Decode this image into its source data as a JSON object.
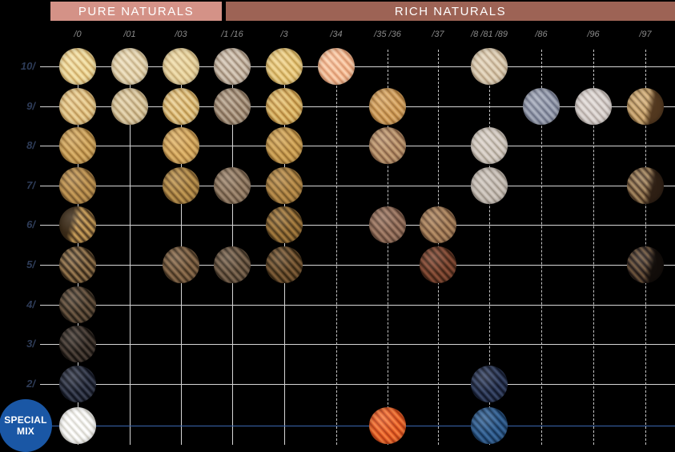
{
  "title_bars": {
    "pure": {
      "label": "PURE NATURALS",
      "color": "#d49287"
    },
    "rich": {
      "label": "RICH NATURALS",
      "color": "#9d6355"
    }
  },
  "grid": {
    "columns": [
      {
        "label": "/0",
        "line": "solid"
      },
      {
        "label": "/01",
        "line": "solid"
      },
      {
        "label": "/03",
        "line": "solid"
      },
      {
        "label": "/1 /16",
        "line": "solid"
      },
      {
        "label": "/3",
        "line": "solid"
      },
      {
        "label": "/34",
        "line": "dashed"
      },
      {
        "label": "/35 /36",
        "line": "dashed"
      },
      {
        "label": "/37",
        "line": "dashed"
      },
      {
        "label": "/8 /81 /89",
        "line": "dashed"
      },
      {
        "label": "/86",
        "line": "dashed"
      },
      {
        "label": "/96",
        "line": "dashed"
      },
      {
        "label": "/97",
        "line": "dashed"
      }
    ],
    "rows": [
      {
        "label": "10/"
      },
      {
        "label": "9/"
      },
      {
        "label": "8/"
      },
      {
        "label": "7/"
      },
      {
        "label": "6/"
      },
      {
        "label": "5/"
      },
      {
        "label": "4/"
      },
      {
        "label": "3/"
      },
      {
        "label": "2/"
      },
      {
        "label": ""
      }
    ],
    "swatches": [
      {
        "row": 0,
        "col": 0,
        "hi": "#f4e4ae",
        "base": "#e7cd8e",
        "lo": "#c6a35e"
      },
      {
        "row": 0,
        "col": 1,
        "hi": "#eee1c2",
        "base": "#ddcba4",
        "lo": "#bfa87e"
      },
      {
        "row": 0,
        "col": 2,
        "hi": "#f0dfae",
        "base": "#e2cb98",
        "lo": "#c2a870"
      },
      {
        "row": 0,
        "col": 3,
        "hi": "#d8cbbb",
        "base": "#bfae9c",
        "lo": "#927e6a"
      },
      {
        "row": 0,
        "col": 4,
        "hi": "#f0d794",
        "base": "#e2bf74",
        "lo": "#bd9a4a"
      },
      {
        "row": 0,
        "col": 5,
        "hi": "#fad2b2",
        "base": "#f1b38c",
        "lo": "#d4926a"
      },
      {
        "row": 0,
        "col": 8,
        "hi": "#e6d9c2",
        "base": "#d5c3a8",
        "lo": "#b29c7e"
      },
      {
        "row": 1,
        "col": 0,
        "hi": "#ecd49c",
        "base": "#dcba7c",
        "lo": "#b58f50"
      },
      {
        "row": 1,
        "col": 1,
        "hi": "#e6d6b2",
        "base": "#d2bd92",
        "lo": "#ad9468"
      },
      {
        "row": 1,
        "col": 2,
        "hi": "#ead29a",
        "base": "#d9b671",
        "lo": "#b08a46"
      },
      {
        "row": 1,
        "col": 3,
        "hi": "#bcab96",
        "base": "#9e8770",
        "lo": "#74604c"
      },
      {
        "row": 1,
        "col": 4,
        "hi": "#e6c67c",
        "base": "#d3a85a",
        "lo": "#a87c34"
      },
      {
        "row": 1,
        "col": 6,
        "hi": "#dfb175",
        "base": "#ca9751",
        "lo": "#a3713a"
      },
      {
        "row": 1,
        "col": 9,
        "hi": "#aab0bf",
        "base": "#8d93a5",
        "lo": "#666c80"
      },
      {
        "row": 1,
        "col": 10,
        "hi": "#e4dedb",
        "base": "#d2cac6",
        "lo": "#aba19c"
      },
      {
        "row": 1,
        "col": 11,
        "hi": "#d8b482",
        "base": "#bd9a62",
        "lo": "#7e5f3a",
        "side": "#52381f"
      },
      {
        "row": 2,
        "col": 0,
        "hi": "#dab26c",
        "base": "#c29751",
        "lo": "#976f33"
      },
      {
        "row": 2,
        "col": 2,
        "hi": "#e2b970",
        "base": "#cc9f58",
        "lo": "#9f7638"
      },
      {
        "row": 2,
        "col": 4,
        "hi": "#d8ad62",
        "base": "#c0954a",
        "lo": "#92692e"
      },
      {
        "row": 2,
        "col": 6,
        "hi": "#c8a47c",
        "base": "#ad8560",
        "lo": "#7e5a40"
      },
      {
        "row": 2,
        "col": 8,
        "hi": "#ded6ce",
        "base": "#ccc3ba",
        "lo": "#a29889"
      },
      {
        "row": 3,
        "col": 0,
        "hi": "#c79c58",
        "base": "#a67e45",
        "lo": "#75562c"
      },
      {
        "row": 3,
        "col": 2,
        "hi": "#c29a54",
        "base": "#a07a40",
        "lo": "#705226"
      },
      {
        "row": 3,
        "col": 3,
        "hi": "#a38c74",
        "base": "#87705a",
        "lo": "#5c4a38"
      },
      {
        "row": 3,
        "col": 4,
        "hi": "#bf9350",
        "base": "#a27a3e",
        "lo": "#6f5226"
      },
      {
        "row": 3,
        "col": 8,
        "hi": "#d4ccc4",
        "base": "#c0b7ae",
        "lo": "#978d82"
      },
      {
        "row": 3,
        "col": 11,
        "hi": "#a78a62",
        "base": "#7a5e40",
        "lo": "#42301f",
        "side": "#2e1f14"
      },
      {
        "row": 4,
        "col": 0,
        "hi": "#c89e5a",
        "base": "#8b6a3c",
        "lo": "#4c3820",
        "side": "#3b2b18",
        "sideAngle": 285
      },
      {
        "row": 4,
        "col": 4,
        "hi": "#a87e40",
        "base": "#7c5c2e",
        "lo": "#4a3618"
      },
      {
        "row": 4,
        "col": 6,
        "hi": "#a5806a",
        "base": "#856250",
        "lo": "#5c4234"
      },
      {
        "row": 4,
        "col": 7,
        "hi": "#b68e66",
        "base": "#947050",
        "lo": "#664830"
      },
      {
        "row": 5,
        "col": 0,
        "hi": "#997950",
        "base": "#5f4a30",
        "lo": "#2d2114"
      },
      {
        "row": 5,
        "col": 2,
        "hi": "#8f7050",
        "base": "#6a5138",
        "lo": "#3c2d1c"
      },
      {
        "row": 5,
        "col": 3,
        "hi": "#806a54",
        "base": "#5f4d3b",
        "lo": "#362b1f"
      },
      {
        "row": 5,
        "col": 4,
        "hi": "#82603a",
        "base": "#5a4226",
        "lo": "#30220f"
      },
      {
        "row": 5,
        "col": 7,
        "hi": "#8c513a",
        "base": "#653826",
        "lo": "#3a2013"
      },
      {
        "row": 5,
        "col": 11,
        "hi": "#6f563c",
        "base": "#41322a",
        "lo": "#1c1410",
        "side": "#120d0a"
      },
      {
        "row": 6,
        "col": 0,
        "hi": "#6e5843",
        "base": "#463a2c",
        "lo": "#221a12"
      },
      {
        "row": 7,
        "col": 0,
        "hi": "#4e423a",
        "base": "#2f2822",
        "lo": "#140f0c"
      },
      {
        "row": 8,
        "col": 0,
        "hi": "#3e4456",
        "base": "#232836",
        "lo": "#0e111c"
      },
      {
        "row": 8,
        "col": 8,
        "hi": "#3c4a6a",
        "base": "#232d48",
        "lo": "#101626"
      },
      {
        "row": 9,
        "col": 0,
        "hi": "#ffffff",
        "base": "#efeeea",
        "lo": "#d2d0c8"
      },
      {
        "row": 9,
        "col": 6,
        "hi": "#f57f40",
        "base": "#e05722",
        "lo": "#ad3d16"
      },
      {
        "row": 9,
        "col": 8,
        "hi": "#3e6c9e",
        "base": "#27507e",
        "lo": "#143050"
      }
    ]
  },
  "special_mix": {
    "line1": "SPECIAL",
    "line2": "MIX",
    "bg": "#1a57a5",
    "text_color": "#ffffff",
    "row_line_color": "#3a67b0"
  },
  "lines": {
    "solid_color": "#d6d6d6",
    "dashed_color": "#c4c4c4"
  },
  "text_colors": {
    "column_label": "#8a8a8a",
    "row_label": "#2e3c58"
  }
}
